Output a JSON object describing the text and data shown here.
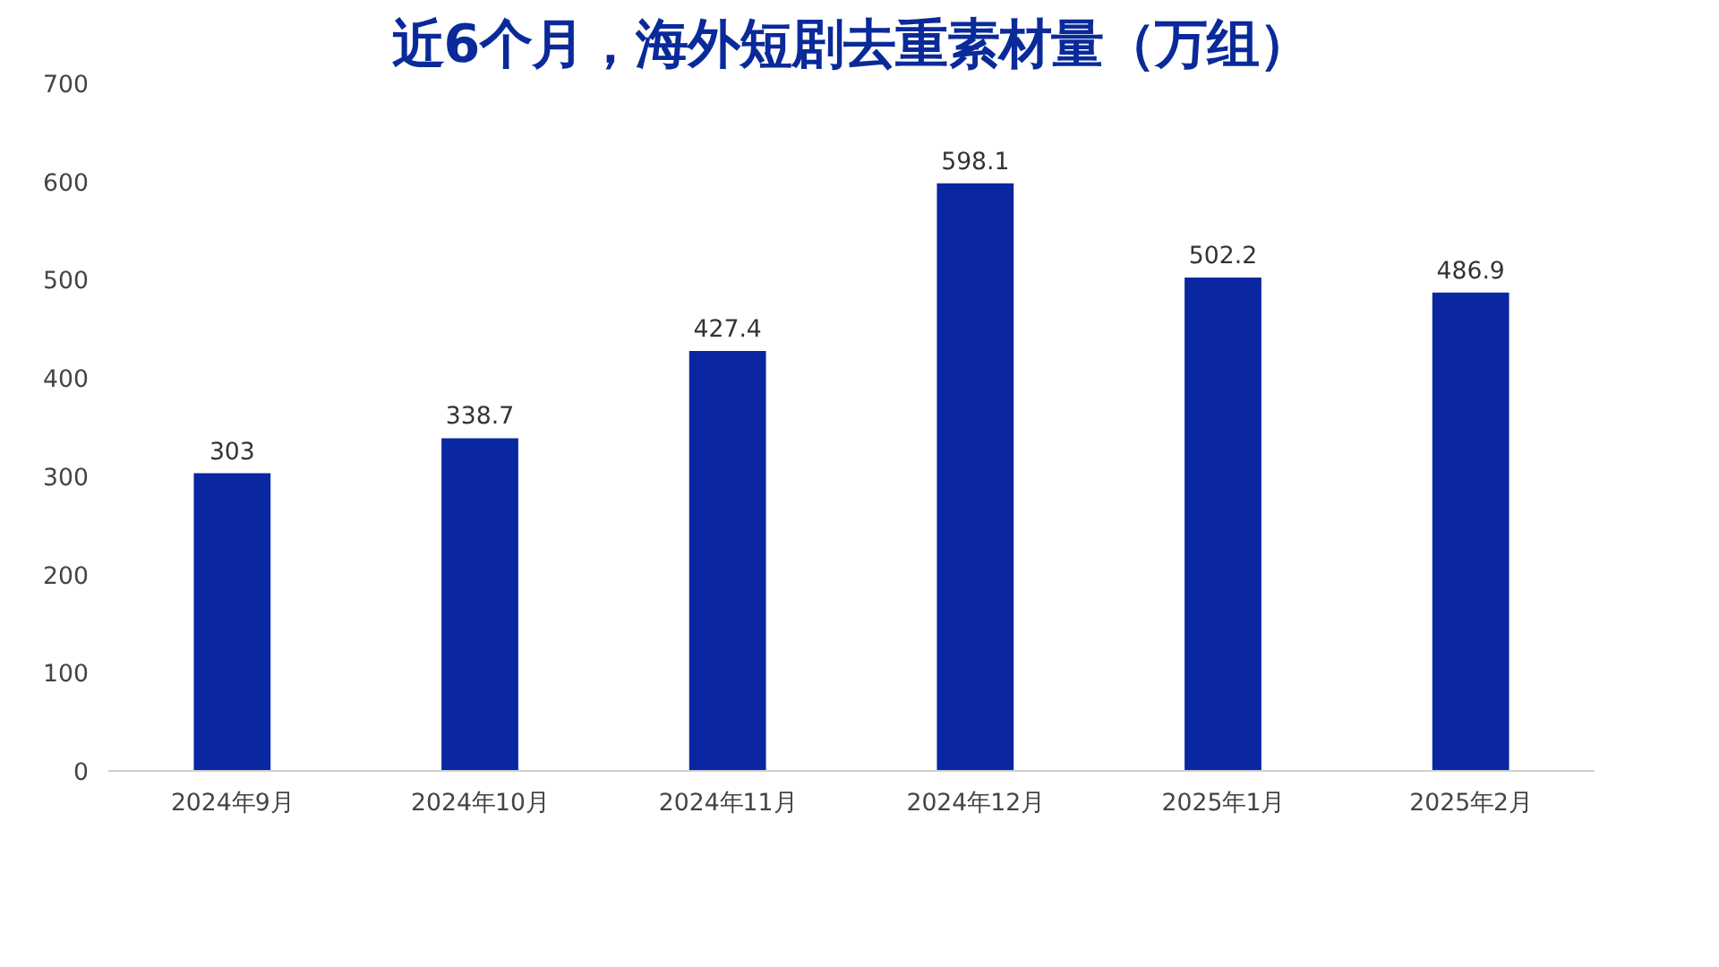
{
  "chart_data": {
    "type": "bar",
    "title": "近6个月，海外短剧去重素材量（万组）",
    "categories": [
      "2024年9月",
      "2024年10月",
      "2024年11月",
      "2024年12月",
      "2025年1月",
      "2025年2月"
    ],
    "values": [
      303,
      338.7,
      427.4,
      598.1,
      502.2,
      486.9
    ],
    "color": "#0a26a0",
    "ylim": [
      0,
      700
    ],
    "yticks": [
      0,
      100,
      200,
      300,
      400,
      500,
      600,
      700
    ],
    "grid": false,
    "data_labels": true
  }
}
